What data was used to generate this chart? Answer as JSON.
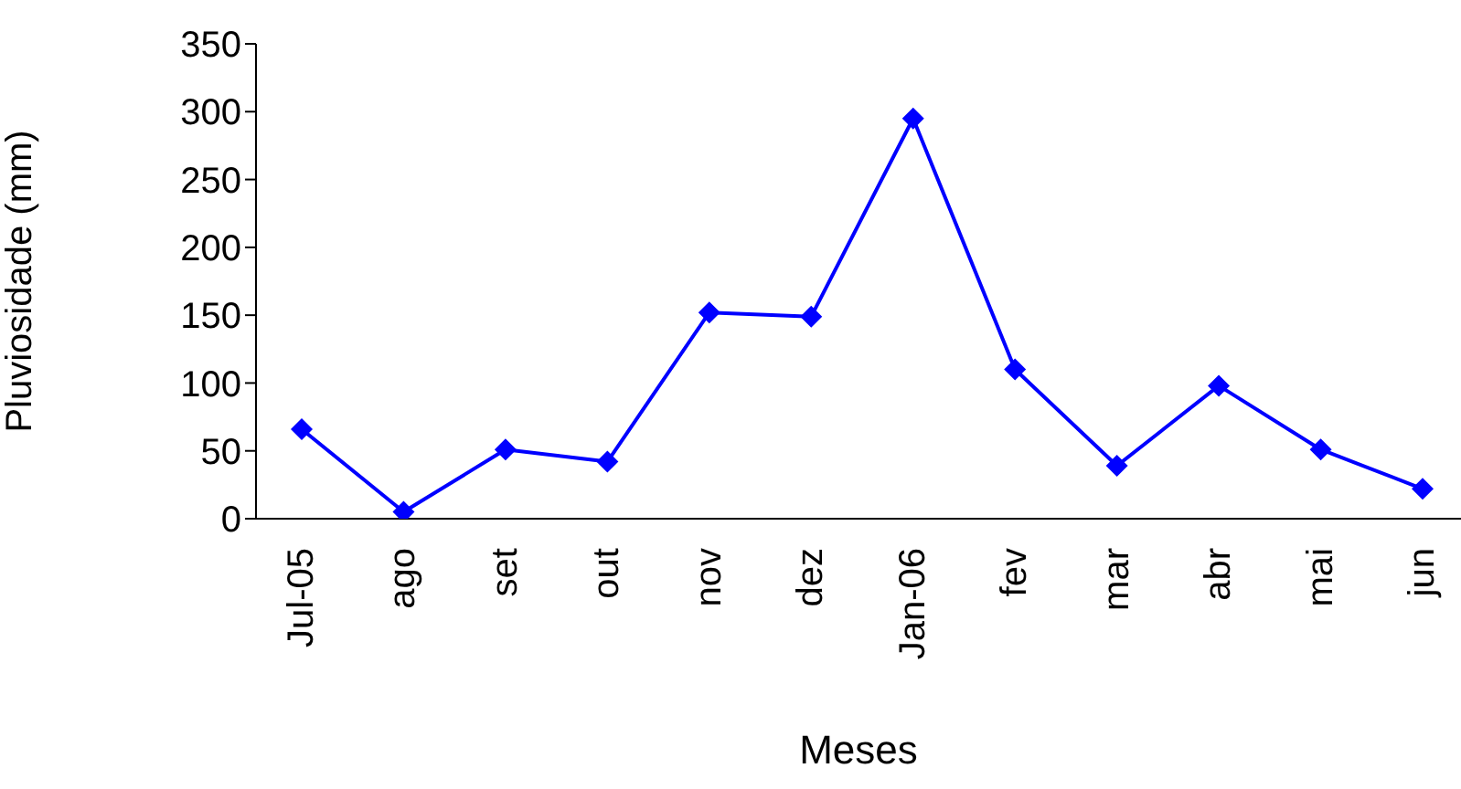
{
  "chart_data": {
    "type": "line",
    "xlabel": "Meses",
    "ylabel": "Pluviosidade (mm)",
    "categories": [
      "Jul-05",
      "ago",
      "set",
      "out",
      "nov",
      "dez",
      "Jan-06",
      "fev",
      "mar",
      "abr",
      "mai",
      "jun"
    ],
    "series": [
      {
        "color": "#0000ff",
        "values": [
          66,
          5,
          51,
          42,
          152,
          149,
          295,
          110,
          39,
          98,
          51,
          22
        ]
      }
    ],
    "ylim": [
      0,
      350
    ],
    "yticks": [
      0,
      50,
      100,
      150,
      200,
      250,
      300,
      350
    ],
    "grid": false,
    "legend": false,
    "marker": "diamond",
    "line_style": "solid"
  }
}
